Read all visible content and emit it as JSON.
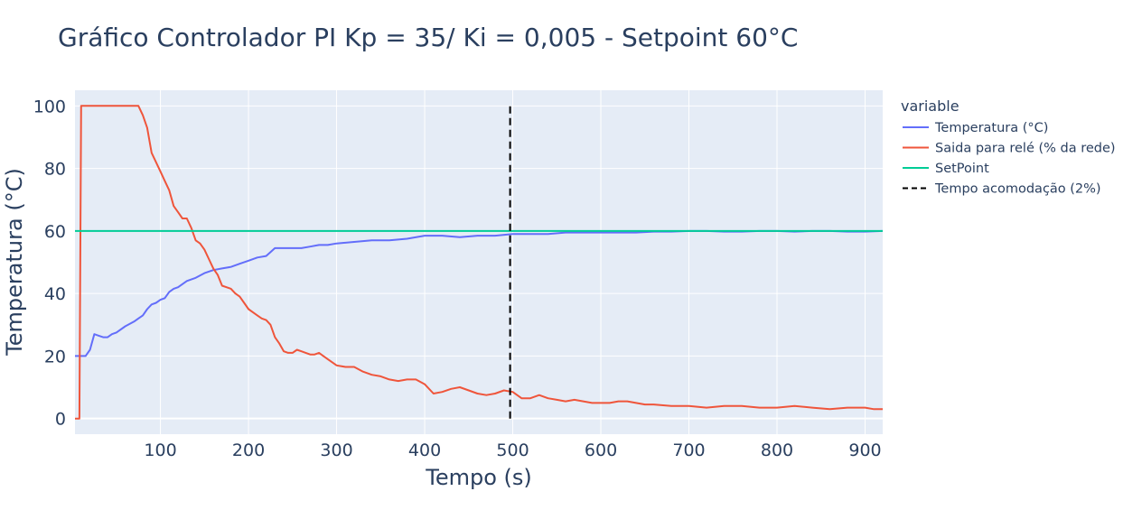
{
  "chart_data": {
    "type": "line",
    "title": "Gráfico Controlador PI Kp = 35/ Ki = 0,005 - Setpoint 60°C",
    "xlabel": "Tempo (s)",
    "ylabel": "Temperatura (°C)",
    "xlim": [
      3,
      920
    ],
    "ylim": [
      -5,
      105
    ],
    "x_ticks": [
      100,
      200,
      300,
      400,
      500,
      600,
      700,
      800,
      900
    ],
    "y_ticks": [
      0,
      20,
      40,
      60,
      80,
      100
    ],
    "grid": true,
    "legend_title": "variable",
    "legend_position": "right",
    "background": "#e5ecf6",
    "series": [
      {
        "name": "Temperatura (°C)",
        "color": "#636efa",
        "dash": "solid",
        "x": [
          3,
          15,
          20,
          25,
          30,
          35,
          40,
          45,
          50,
          60,
          70,
          75,
          80,
          85,
          90,
          95,
          100,
          105,
          110,
          115,
          120,
          130,
          140,
          150,
          160,
          170,
          180,
          190,
          200,
          210,
          220,
          230,
          240,
          250,
          260,
          270,
          280,
          290,
          300,
          320,
          340,
          360,
          380,
          400,
          420,
          440,
          460,
          480,
          500,
          520,
          540,
          560,
          580,
          600,
          620,
          640,
          660,
          680,
          700,
          720,
          740,
          760,
          780,
          800,
          820,
          840,
          860,
          880,
          900,
          920
        ],
        "y": [
          20,
          20,
          22,
          27,
          26.5,
          26,
          26,
          27,
          27.5,
          29.5,
          31,
          32,
          33,
          35,
          36.5,
          37,
          38,
          38.5,
          40.5,
          41.5,
          42,
          44,
          45,
          46.5,
          47.5,
          48,
          48.5,
          49.5,
          50.5,
          51.5,
          52,
          54.5,
          54.5,
          54.5,
          54.5,
          55,
          55.5,
          55.5,
          56,
          56.5,
          57,
          57,
          57.5,
          58.5,
          58.5,
          58,
          58.5,
          58.5,
          59,
          59,
          59,
          59.5,
          59.5,
          59.5,
          59.5,
          59.5,
          59.8,
          59.8,
          60,
          60,
          59.8,
          59.8,
          60,
          60,
          59.8,
          60,
          60,
          59.8,
          59.8,
          60
        ]
      },
      {
        "name": "Saida para relé (% da rede)",
        "color": "#ef553b",
        "dash": "solid",
        "x": [
          3,
          8,
          10,
          15,
          30,
          50,
          70,
          75,
          80,
          85,
          90,
          95,
          100,
          105,
          110,
          115,
          120,
          125,
          130,
          135,
          140,
          145,
          150,
          155,
          160,
          165,
          170,
          175,
          180,
          185,
          190,
          195,
          200,
          205,
          210,
          215,
          220,
          225,
          230,
          235,
          240,
          245,
          250,
          255,
          260,
          265,
          270,
          275,
          280,
          285,
          290,
          300,
          310,
          320,
          330,
          340,
          350,
          360,
          370,
          380,
          390,
          400,
          410,
          420,
          430,
          440,
          450,
          460,
          470,
          480,
          490,
          500,
          510,
          520,
          530,
          540,
          550,
          560,
          570,
          580,
          590,
          600,
          610,
          620,
          630,
          640,
          650,
          660,
          680,
          700,
          720,
          740,
          760,
          780,
          800,
          820,
          840,
          860,
          880,
          900,
          910,
          920
        ],
        "y": [
          0,
          0,
          100,
          100,
          100,
          100,
          100,
          100,
          97,
          93,
          85,
          82,
          79,
          76,
          73,
          68,
          66,
          64,
          64,
          61,
          57,
          56,
          54,
          51,
          48,
          46,
          42.5,
          42,
          41.5,
          40,
          39,
          37,
          35,
          34,
          33,
          32,
          31.5,
          30,
          26,
          24,
          21.5,
          21,
          21,
          22,
          21.5,
          21,
          20.5,
          20.5,
          21,
          20,
          19,
          17,
          16.5,
          16.5,
          15,
          14,
          13.5,
          12.5,
          12,
          12.5,
          12.5,
          11,
          8,
          8.5,
          9.5,
          10,
          9,
          8,
          7.5,
          8,
          9,
          8.5,
          6.5,
          6.5,
          7.5,
          6.5,
          6,
          5.5,
          6,
          5.5,
          5,
          5,
          5,
          5.5,
          5.5,
          5,
          4.5,
          4.5,
          4,
          4,
          3.5,
          4,
          4,
          3.5,
          3.5,
          4,
          3.5,
          3,
          3.5,
          3.5,
          3,
          3
        ]
      },
      {
        "name": "SetPoint",
        "color": "#00cc96",
        "dash": "solid",
        "x": [
          3,
          920
        ],
        "y": [
          60,
          60
        ]
      },
      {
        "name": "Tempo acomodação (2%)",
        "color": "#000000",
        "dash": "dash",
        "x": [
          497,
          497
        ],
        "y": [
          0,
          100
        ]
      }
    ]
  }
}
